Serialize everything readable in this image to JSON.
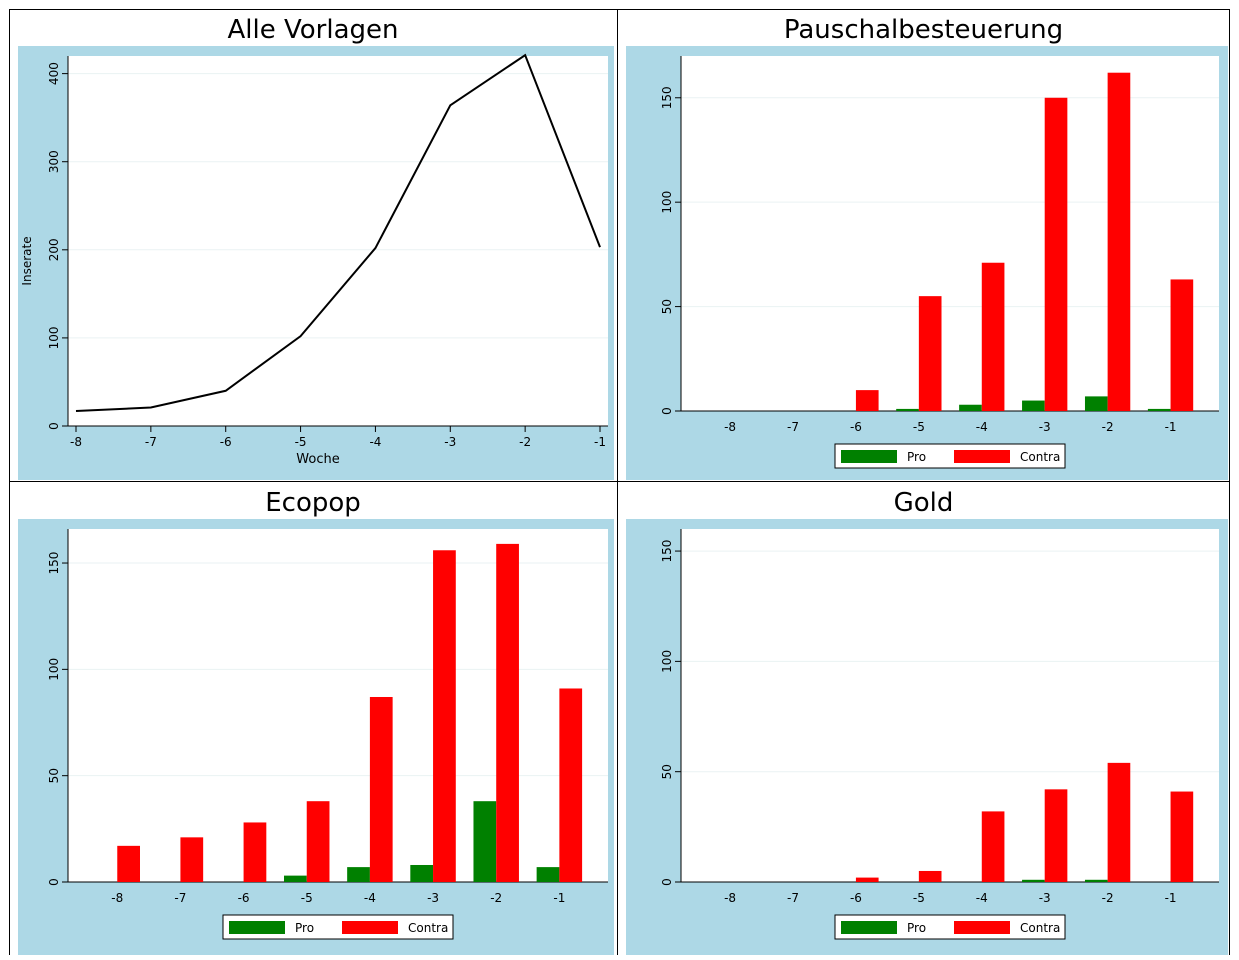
{
  "chart_data": [
    {
      "type": "line",
      "title": "Alle Vorlagen",
      "xlabel": "Woche",
      "ylabel": "Inserate",
      "xlim": [
        -8,
        -1
      ],
      "ylim": [
        0,
        420
      ],
      "x_ticks": [
        -8,
        -7,
        -6,
        -5,
        -4,
        -3,
        -2,
        -1
      ],
      "y_ticks": [
        0,
        100,
        200,
        300,
        400
      ],
      "grid": true,
      "series": [
        {
          "x": [
            -8,
            -7,
            -6,
            -5,
            -4,
            -3,
            -2,
            -1
          ],
          "values": [
            17,
            21,
            40,
            102,
            202,
            364,
            421,
            203
          ]
        }
      ]
    },
    {
      "type": "bar",
      "title": "Pauschalbesteuerung",
      "categories": [
        "-8",
        "-7",
        "-6",
        "-5",
        "-4",
        "-3",
        "-2",
        "-1"
      ],
      "ylim": [
        0,
        170
      ],
      "y_ticks": [
        0,
        50,
        100,
        150
      ],
      "grid": true,
      "legend": "bottom",
      "series": [
        {
          "name": "Pro",
          "color": "#008000",
          "values": [
            0,
            0,
            0,
            1,
            3,
            5,
            7,
            1
          ]
        },
        {
          "name": "Contra",
          "color": "#ff0000",
          "values": [
            0,
            0,
            10,
            55,
            71,
            150,
            162,
            63
          ]
        }
      ]
    },
    {
      "type": "bar",
      "title": "Ecopop",
      "categories": [
        "-8",
        "-7",
        "-6",
        "-5",
        "-4",
        "-3",
        "-2",
        "-1"
      ],
      "ylim": [
        0,
        166
      ],
      "y_ticks": [
        0,
        50,
        100,
        150
      ],
      "grid": true,
      "legend": "bottom",
      "series": [
        {
          "name": "Pro",
          "color": "#008000",
          "values": [
            0,
            0,
            0,
            3,
            7,
            8,
            38,
            7
          ]
        },
        {
          "name": "Contra",
          "color": "#ff0000",
          "values": [
            17,
            21,
            28,
            38,
            87,
            156,
            159,
            91
          ]
        }
      ]
    },
    {
      "type": "bar",
      "title": "Gold",
      "categories": [
        "-8",
        "-7",
        "-6",
        "-5",
        "-4",
        "-3",
        "-2",
        "-1"
      ],
      "ylim": [
        0,
        160
      ],
      "y_ticks": [
        0,
        50,
        100,
        150
      ],
      "grid": true,
      "legend": "bottom",
      "series": [
        {
          "name": "Pro",
          "color": "#008000",
          "values": [
            0,
            0,
            0,
            0,
            0,
            1,
            1,
            0
          ]
        },
        {
          "name": "Contra",
          "color": "#ff0000",
          "values": [
            0,
            0,
            2,
            5,
            32,
            42,
            54,
            41
          ]
        }
      ]
    }
  ]
}
